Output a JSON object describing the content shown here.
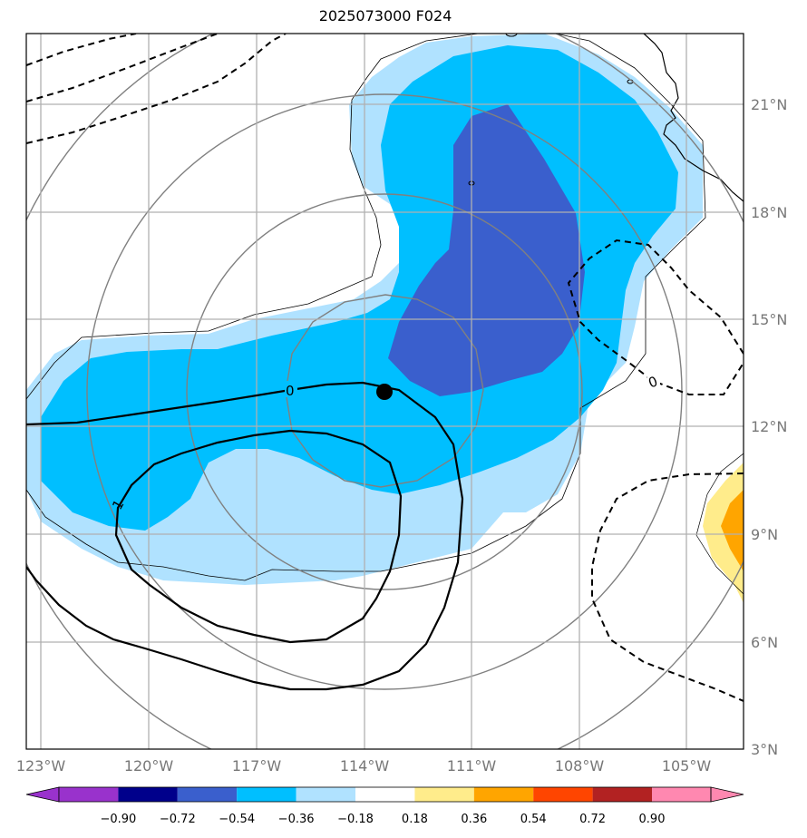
{
  "title": "2025073000 F024",
  "map": {
    "lon_ticks": [
      "123°W",
      "120°W",
      "117°W",
      "114°W",
      "111°W",
      "108°W",
      "105°W"
    ],
    "lat_ticks": [
      "21°N",
      "18°N",
      "15°N",
      "12°N",
      "9°N",
      "6°N",
      "3°N"
    ],
    "extent": {
      "lon": [
        -123.4,
        -103.5
      ],
      "lat": [
        3,
        22.9
      ]
    },
    "contour_labels": [
      "0",
      "1",
      "0"
    ],
    "center_marker": {
      "lon": -113.5,
      "lat": 13.0
    }
  },
  "colorbar": {
    "labels": [
      "−0.90",
      "−0.72",
      "−0.54",
      "−0.36",
      "−0.18",
      "0.18",
      "0.36",
      "0.54",
      "0.72",
      "0.90"
    ],
    "colors": [
      "#9932cc",
      "#00008b",
      "#3a5fcd",
      "#00bfff",
      "#b0e2ff",
      "#ffffff",
      "#ffec8b",
      "#ffa500",
      "#ff4500",
      "#b22222",
      "#ff88b0"
    ]
  }
}
